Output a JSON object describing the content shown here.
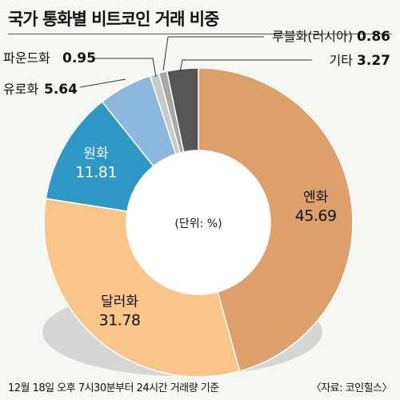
{
  "title": "국가 통화별 비트코인 거래 비중",
  "center_text": "(단위: %)",
  "footnote": "12월 18일 오후 7시30분부터 24시간 거래량 기준",
  "source": "〈자료: 코인힐스〉",
  "chart_data": {
    "type": "pie",
    "donut": true,
    "title": "국가 통화별 비트코인 거래 비중",
    "unit": "%",
    "categories": [
      "엔화",
      "달러화",
      "원화",
      "유로화",
      "파운드화",
      "루블화(러시아)",
      "기타"
    ],
    "values": [
      45.69,
      31.78,
      11.81,
      5.64,
      0.95,
      0.86,
      3.27
    ],
    "value_labels": [
      "45.69",
      "31.78",
      "11.81",
      "5.64",
      "0.95",
      "0.86",
      "3.27"
    ],
    "colors": [
      "#dda06a",
      "#f9c588",
      "#2f97c4",
      "#8bb8dc",
      "#c9c9c9",
      "#a7a7a7",
      "#555555"
    ],
    "label_mode": [
      "inside",
      "inside",
      "inside",
      "outside",
      "outside",
      "outside",
      "outside"
    ],
    "label_color": [
      "#111111",
      "#111111",
      "#ffffff",
      "#111111",
      "#111111",
      "#111111",
      "#111111"
    ]
  }
}
